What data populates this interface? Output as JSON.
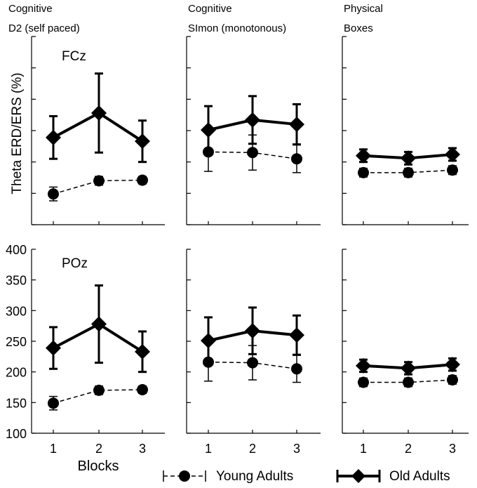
{
  "figure": {
    "ylabel": "Theta ERD/ERS (%)",
    "xlabel": "Blocks",
    "row_labels": [
      "FCz",
      "POz"
    ],
    "legend": {
      "young": "Young Adults",
      "old": "Old Adults"
    }
  },
  "columns": [
    {
      "title_line1": "Cognitive",
      "title_line2": "D2 (self paced)"
    },
    {
      "title_line1": "Cognitive",
      "title_line2": "SImon (monotonous)"
    },
    {
      "title_line1": "Physical",
      "title_line2": "Boxes"
    }
  ],
  "chart_data": {
    "type": "line",
    "subtype": "line with error bars, 2 rows x 3 columns of panels",
    "x": [
      1,
      2,
      3
    ],
    "xticks": [
      "1",
      "2",
      "3"
    ],
    "yticks": [
      "100",
      "150",
      "200",
      "250",
      "300",
      "350",
      "400"
    ],
    "ylim": [
      100,
      400
    ],
    "panels": [
      {
        "row": 0,
        "col": 0,
        "series": [
          {
            "name": "Young Adults",
            "values": [
              149,
              170,
              171
            ],
            "errors": [
              11,
              7,
              6
            ]
          },
          {
            "name": "Old Adults",
            "values": [
              239,
              278,
              233
            ],
            "errors": [
              34,
              63,
              33
            ]
          }
        ]
      },
      {
        "row": 0,
        "col": 1,
        "series": [
          {
            "name": "Young Adults",
            "values": [
              216,
              215,
              205
            ],
            "errors": [
              31,
              28,
              22
            ]
          },
          {
            "name": "Old Adults",
            "values": [
              251,
              267,
              260
            ],
            "errors": [
              38,
              38,
              32
            ]
          }
        ]
      },
      {
        "row": 0,
        "col": 2,
        "series": [
          {
            "name": "Young Adults",
            "values": [
              183,
              183,
              187
            ],
            "errors": [
              7,
              7,
              7
            ]
          },
          {
            "name": "Old Adults",
            "values": [
              210,
              206,
              212
            ],
            "errors": [
              10,
              10,
              10
            ]
          }
        ]
      },
      {
        "row": 1,
        "col": 0,
        "series": [
          {
            "name": "Young Adults",
            "values": [
              149,
              170,
              171
            ],
            "errors": [
              11,
              7,
              6
            ]
          },
          {
            "name": "Old Adults",
            "values": [
              239,
              278,
              233
            ],
            "errors": [
              34,
              63,
              33
            ]
          }
        ]
      },
      {
        "row": 1,
        "col": 1,
        "series": [
          {
            "name": "Young Adults",
            "values": [
              216,
              215,
              205
            ],
            "errors": [
              31,
              28,
              22
            ]
          },
          {
            "name": "Old Adults",
            "values": [
              251,
              267,
              260
            ],
            "errors": [
              38,
              38,
              32
            ]
          }
        ]
      },
      {
        "row": 1,
        "col": 2,
        "series": [
          {
            "name": "Young Adults",
            "values": [
              183,
              183,
              187
            ],
            "errors": [
              7,
              7,
              7
            ]
          },
          {
            "name": "Old Adults",
            "values": [
              210,
              206,
              212
            ],
            "errors": [
              10,
              10,
              10
            ]
          }
        ]
      }
    ],
    "notes": "FCz row shares the y scale shown on the POz row"
  }
}
